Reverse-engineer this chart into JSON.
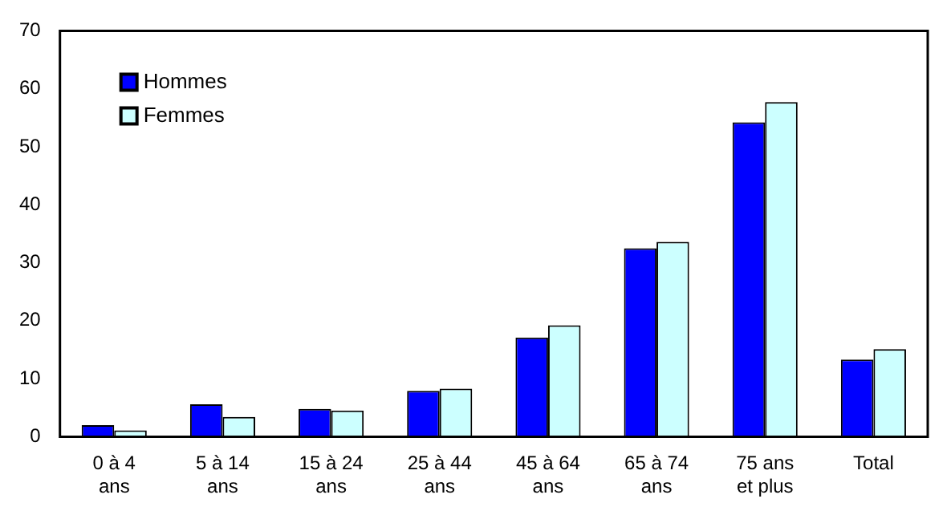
{
  "chart_data": {
    "type": "bar",
    "categories": [
      "0 à 4\nans",
      "5 à 14\nans",
      "15 à 24\nans",
      "25 à 44\nans",
      "45 à 64\nans",
      "65 à 74\nans",
      "75 ans\net plus",
      "Total"
    ],
    "series": [
      {
        "name": "Hommes",
        "color": "#0000ff",
        "values": [
          2.0,
          5.6,
          4.8,
          7.9,
          17.1,
          32.5,
          54.2,
          13.3
        ]
      },
      {
        "name": "Femmes",
        "color": "#ccffff",
        "values": [
          1.1,
          3.4,
          4.5,
          8.3,
          19.2,
          33.6,
          57.7,
          15.1
        ]
      }
    ],
    "ylim": [
      0,
      70
    ],
    "yticks": [
      0,
      10,
      20,
      30,
      40,
      50,
      60,
      70
    ],
    "grid": false,
    "legend": "top left"
  }
}
